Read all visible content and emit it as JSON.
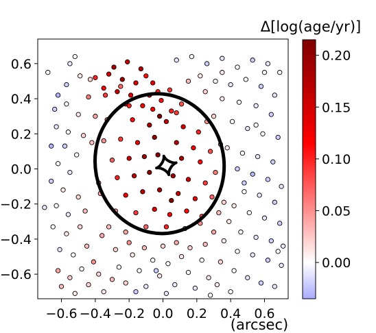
{
  "chart_data": {
    "type": "scatter",
    "xlabel": "(arcsec)",
    "xlim": [
      -0.74,
      0.74
    ],
    "ylim": [
      -0.74,
      0.74
    ],
    "xticks": [
      -0.6,
      -0.4,
      -0.2,
      0.0,
      0.2,
      0.4,
      0.6
    ],
    "yticks": [
      -0.6,
      -0.4,
      -0.2,
      0.0,
      0.2,
      0.4,
      0.6
    ],
    "xtick_labels": [
      "−0.6",
      "−0.4",
      "−0.2",
      "0.0",
      "0.2",
      "0.4",
      "0.6"
    ],
    "ytick_labels": [
      "0.6",
      "0.4",
      "0.2",
      "0.0",
      "−0.2",
      "−0.4",
      "−0.6"
    ],
    "grid": false,
    "colorbar": {
      "label": "Δ[log(age/yr)]",
      "range": [
        -0.035,
        0.215
      ],
      "ticks": [
        0.2,
        0.15,
        0.1,
        0.05,
        0.0
      ],
      "tick_labels": [
        "0.20",
        "0.15",
        "0.10",
        "0.05",
        "0.00"
      ],
      "colors": [
        "#aaaaff",
        "#ffffff",
        "#ff0000",
        "#800000"
      ]
    },
    "marker": {
      "edgecolor": "#000000"
    },
    "curves": {
      "critical_curve": {
        "shape": "ellipse",
        "center": [
          -0.02,
          0.03
        ],
        "semi_axes": [
          0.38,
          0.4
        ],
        "rotation_deg": -12,
        "color": "#000000"
      },
      "caustic": {
        "shape": "astroid",
        "center": [
          0.02,
          0.02
        ],
        "size": [
          0.06,
          0.055
        ],
        "color": "#000000"
      }
    },
    "points": [
      [
        -0.29,
        0.58,
        0.18
      ],
      [
        -0.21,
        0.61,
        0.16
      ],
      [
        -0.13,
        0.57,
        0.17
      ],
      [
        -0.32,
        0.54,
        0.15
      ],
      [
        -0.24,
        0.51,
        0.19
      ],
      [
        -0.16,
        0.49,
        0.14
      ],
      [
        -0.06,
        0.49,
        0.13
      ],
      [
        -0.35,
        0.46,
        0.12
      ],
      [
        -0.27,
        0.44,
        0.16
      ],
      [
        -0.19,
        0.42,
        0.14
      ],
      [
        -0.1,
        0.53,
        0.11
      ],
      [
        -0.03,
        0.44,
        0.1
      ],
      [
        0.04,
        0.45,
        0.09
      ],
      [
        -0.22,
        0.37,
        0.13
      ],
      [
        -0.12,
        0.36,
        0.12
      ],
      [
        -0.01,
        0.39,
        0.11
      ],
      [
        0.11,
        0.37,
        0.08
      ],
      [
        0.05,
        0.33,
        0.1
      ],
      [
        -0.4,
        0.52,
        0.1
      ],
      [
        -0.34,
        0.42,
        0.09
      ],
      [
        -0.08,
        0.42,
        0.15
      ],
      [
        -0.25,
        0.47,
        0.07
      ],
      [
        -0.55,
        0.6,
        -0.01
      ],
      [
        -0.49,
        0.53,
        0.01
      ],
      [
        -0.57,
        0.48,
        -0.02
      ],
      [
        -0.43,
        0.51,
        0.02
      ],
      [
        -0.62,
        0.42,
        -0.03
      ],
      [
        -0.64,
        0.34,
        -0.02
      ],
      [
        -0.57,
        0.37,
        0.0
      ],
      [
        -0.5,
        0.31,
        0.01
      ],
      [
        -0.63,
        0.24,
        -0.01
      ],
      [
        -0.56,
        0.21,
        0.0
      ],
      [
        -0.47,
        0.19,
        0.02
      ],
      [
        -0.66,
        0.13,
        -0.03
      ],
      [
        -0.58,
        0.13,
        -0.02
      ],
      [
        -0.51,
        0.08,
        0.0
      ],
      [
        -0.62,
        0.03,
        0.0
      ],
      [
        -0.55,
        -0.02,
        -0.01
      ],
      [
        -0.66,
        -0.07,
        -0.02
      ],
      [
        -0.59,
        -0.12,
        0.01
      ],
      [
        -0.5,
        -0.16,
        0.02
      ],
      [
        -0.63,
        -0.21,
        0.0
      ],
      [
        -0.56,
        -0.26,
        -0.01
      ],
      [
        -0.46,
        -0.24,
        0.03
      ],
      [
        -0.65,
        -0.33,
        0.0
      ],
      [
        -0.57,
        -0.37,
        0.01
      ],
      [
        -0.49,
        -0.33,
        0.02
      ],
      [
        -0.61,
        -0.46,
        -0.01
      ],
      [
        -0.53,
        -0.49,
        0.0
      ],
      [
        -0.45,
        -0.44,
        0.03
      ],
      [
        -0.62,
        -0.58,
        0.04
      ],
      [
        -0.55,
        -0.62,
        0.02
      ],
      [
        -0.48,
        -0.57,
        0.0
      ],
      [
        -0.41,
        -0.53,
        0.05
      ],
      [
        -0.6,
        -0.67,
        0.03
      ],
      [
        -0.52,
        -0.71,
        0.01
      ],
      [
        -0.44,
        -0.66,
        0.02
      ],
      [
        -0.7,
        -0.22,
        -0.01
      ],
      [
        -0.68,
        0.55,
        0.0
      ],
      [
        -0.44,
        0.41,
        0.06
      ],
      [
        -0.4,
        0.3,
        0.04
      ],
      [
        -0.42,
        0.15,
        0.03
      ],
      [
        -0.38,
        -0.08,
        0.05
      ],
      [
        -0.36,
        -0.38,
        0.04
      ],
      [
        -0.38,
        -0.6,
        0.02
      ],
      [
        -0.52,
        0.64,
        0.0
      ],
      [
        -0.35,
        -0.7,
        0.01
      ],
      [
        -0.3,
        -0.63,
        0.03
      ],
      [
        -0.26,
        -0.56,
        0.0
      ],
      [
        -0.22,
        -0.65,
        0.02
      ],
      [
        -0.18,
        -0.49,
        0.01
      ],
      [
        -0.14,
        -0.58,
        0.0
      ],
      [
        -0.1,
        -0.67,
        -0.01
      ],
      [
        -0.06,
        -0.52,
        0.0
      ],
      [
        -0.02,
        -0.61,
        0.01
      ],
      [
        0.03,
        -0.54,
        0.0
      ],
      [
        0.07,
        -0.66,
        -0.01
      ],
      [
        0.11,
        -0.5,
        0.01
      ],
      [
        0.15,
        -0.59,
        0.0
      ],
      [
        0.19,
        -0.68,
        -0.01
      ],
      [
        0.23,
        -0.52,
        0.0
      ],
      [
        0.27,
        -0.62,
        0.01
      ],
      [
        -0.28,
        -0.46,
        0.02
      ],
      [
        -0.2,
        -0.42,
        0.05
      ],
      [
        -0.11,
        -0.45,
        0.03
      ],
      [
        0.0,
        -0.44,
        0.02
      ],
      [
        0.08,
        -0.42,
        0.04
      ],
      [
        0.16,
        -0.45,
        0.02
      ],
      [
        0.25,
        -0.43,
        0.03
      ],
      [
        -0.16,
        -0.7,
        -0.02
      ],
      [
        0.02,
        -0.71,
        -0.01
      ],
      [
        -0.04,
        -0.58,
        -0.02
      ],
      [
        0.08,
        0.62,
        -0.01
      ],
      [
        0.17,
        0.64,
        0.0
      ],
      [
        0.26,
        0.6,
        -0.02
      ],
      [
        0.35,
        0.63,
        -0.01
      ],
      [
        0.44,
        0.58,
        0.0
      ],
      [
        0.53,
        0.62,
        -0.02
      ],
      [
        0.62,
        0.6,
        -0.01
      ],
      [
        0.69,
        0.55,
        0.0
      ],
      [
        0.22,
        0.53,
        0.01
      ],
      [
        0.31,
        0.5,
        0.0
      ],
      [
        0.4,
        0.48,
        -0.01
      ],
      [
        0.49,
        0.51,
        0.0
      ],
      [
        0.58,
        0.47,
        -0.02
      ],
      [
        0.66,
        0.42,
        -0.01
      ],
      [
        0.25,
        0.44,
        0.02
      ],
      [
        0.35,
        0.4,
        0.01
      ],
      [
        0.45,
        0.38,
        0.0
      ],
      [
        0.55,
        0.36,
        -0.01
      ],
      [
        0.64,
        0.31,
        -0.02
      ],
      [
        0.3,
        0.3,
        0.02
      ],
      [
        0.41,
        0.27,
        0.0
      ],
      [
        0.5,
        0.23,
        -0.01
      ],
      [
        0.59,
        0.2,
        0.0
      ],
      [
        0.68,
        0.18,
        -0.02
      ],
      [
        0.38,
        0.12,
        0.01
      ],
      [
        0.47,
        0.09,
        0.0
      ],
      [
        0.56,
        0.07,
        -0.01
      ],
      [
        0.65,
        0.04,
        -0.02
      ],
      [
        0.44,
        0.0,
        -0.02
      ],
      [
        0.53,
        -0.03,
        -0.03
      ],
      [
        0.62,
        -0.06,
        -0.02
      ],
      [
        0.7,
        -0.1,
        -0.01
      ],
      [
        0.48,
        -0.13,
        0.0
      ],
      [
        0.57,
        -0.15,
        -0.01
      ],
      [
        0.66,
        -0.19,
        -0.02
      ],
      [
        0.42,
        -0.21,
        0.01
      ],
      [
        0.51,
        -0.25,
        0.0
      ],
      [
        0.6,
        -0.28,
        -0.01
      ],
      [
        0.69,
        -0.31,
        -0.02
      ],
      [
        0.39,
        -0.3,
        0.01
      ],
      [
        0.46,
        -0.36,
        0.0
      ],
      [
        0.55,
        -0.39,
        -0.01
      ],
      [
        0.64,
        -0.41,
        -0.02
      ],
      [
        0.71,
        -0.44,
        -0.01
      ],
      [
        0.36,
        -0.41,
        0.01
      ],
      [
        0.44,
        -0.47,
        0.0
      ],
      [
        0.53,
        -0.49,
        -0.01
      ],
      [
        0.62,
        -0.52,
        -0.02
      ],
      [
        0.7,
        -0.55,
        -0.01
      ],
      [
        0.34,
        -0.53,
        0.02
      ],
      [
        0.42,
        -0.58,
        0.0
      ],
      [
        0.5,
        -0.62,
        -0.01
      ],
      [
        0.58,
        -0.65,
        -0.02
      ],
      [
        0.66,
        -0.67,
        -0.01
      ],
      [
        0.32,
        -0.66,
        0.01
      ],
      [
        0.4,
        -0.7,
        0.0
      ],
      [
        0.55,
        0.25,
        0.0
      ],
      [
        0.48,
        -0.08,
        -0.02
      ],
      [
        0.36,
        -0.19,
        0.02
      ],
      [
        0.6,
        0.55,
        0.0
      ],
      [
        0.35,
        0.55,
        0.01
      ],
      [
        0.15,
        0.5,
        0.03
      ],
      [
        0.68,
        -0.47,
        0.0
      ],
      [
        0.28,
        -0.72,
        0.0
      ],
      [
        -0.18,
        0.28,
        0.11
      ],
      [
        -0.08,
        0.25,
        0.18
      ],
      [
        0.02,
        0.27,
        0.16
      ],
      [
        0.12,
        0.24,
        0.14
      ],
      [
        0.21,
        0.21,
        0.1
      ],
      [
        -0.25,
        0.17,
        0.09
      ],
      [
        -0.15,
        0.15,
        0.13
      ],
      [
        -0.05,
        0.18,
        0.2
      ],
      [
        0.08,
        0.15,
        0.17
      ],
      [
        0.18,
        0.12,
        0.12
      ],
      [
        0.28,
        0.1,
        0.08
      ],
      [
        -0.3,
        0.05,
        0.07
      ],
      [
        -0.2,
        0.06,
        0.15
      ],
      [
        -0.11,
        0.07,
        0.19
      ],
      [
        -0.03,
        0.08,
        0.21
      ],
      [
        0.11,
        0.06,
        0.18
      ],
      [
        0.22,
        0.04,
        0.11
      ],
      [
        0.31,
        -0.02,
        0.06
      ],
      [
        -0.27,
        -0.05,
        0.1
      ],
      [
        -0.17,
        -0.04,
        0.16
      ],
      [
        -0.08,
        -0.02,
        0.2
      ],
      [
        0.06,
        -0.04,
        0.19
      ],
      [
        0.15,
        -0.06,
        0.15
      ],
      [
        0.25,
        -0.08,
        0.09
      ],
      [
        -0.22,
        -0.15,
        0.12
      ],
      [
        -0.12,
        -0.13,
        0.17
      ],
      [
        -0.02,
        -0.12,
        0.19
      ],
      [
        0.09,
        -0.14,
        0.16
      ],
      [
        0.19,
        -0.17,
        0.13
      ],
      [
        0.29,
        -0.16,
        0.07
      ],
      [
        -0.28,
        -0.24,
        0.05
      ],
      [
        -0.16,
        -0.25,
        0.09
      ],
      [
        -0.05,
        -0.23,
        0.14
      ],
      [
        0.04,
        -0.26,
        0.12
      ],
      [
        0.14,
        -0.24,
        0.11
      ],
      [
        0.23,
        -0.27,
        0.08
      ],
      [
        -0.1,
        -0.33,
        0.07
      ],
      [
        0.02,
        -0.33,
        0.1
      ],
      [
        0.13,
        -0.34,
        0.06
      ],
      [
        0.22,
        -0.31,
        0.05
      ],
      [
        -0.2,
        0.36,
        0.1
      ],
      [
        -0.06,
        0.34,
        0.12
      ],
      [
        0.08,
        0.32,
        0.09
      ],
      [
        -0.33,
        0.28,
        0.06
      ],
      [
        0.26,
        0.27,
        0.05
      ],
      [
        -0.35,
        0.16,
        0.05
      ],
      [
        0.34,
        0.14,
        0.04
      ],
      [
        -0.37,
        -0.14,
        0.04
      ],
      [
        0.33,
        -0.25,
        0.03
      ],
      [
        -0.32,
        -0.33,
        0.03
      ],
      [
        -0.22,
        -0.36,
        0.04
      ],
      [
        0.3,
        -0.36,
        0.04
      ],
      [
        -0.02,
        0.3,
        0.22
      ],
      [
        0.05,
        -0.18,
        0.21
      ]
    ]
  }
}
